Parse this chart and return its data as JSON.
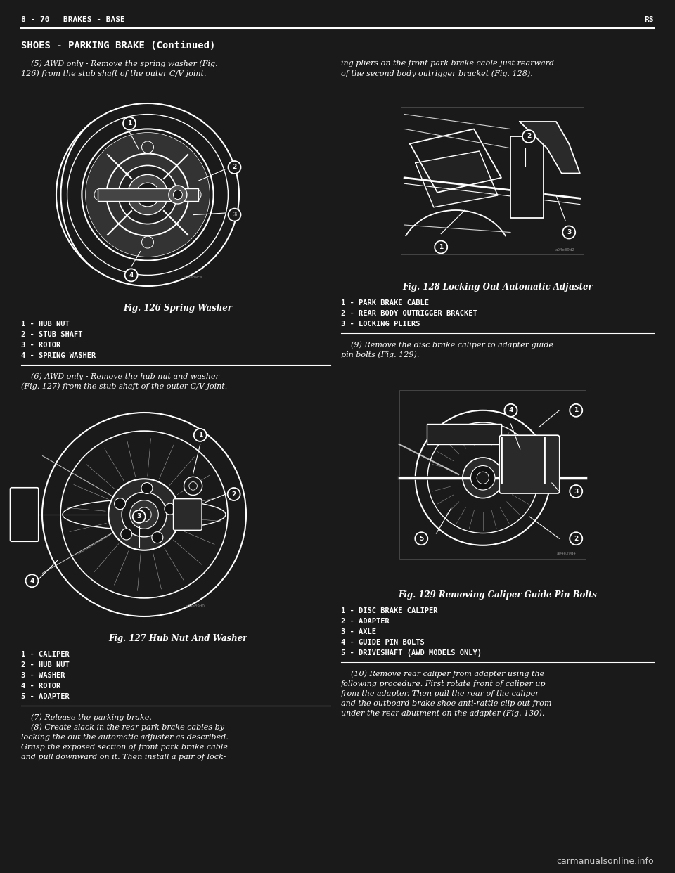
{
  "bg_color": "#1a1a1a",
  "text_color": "#ffffff",
  "line_color": "#ffffff",
  "figsize": [
    9.6,
    12.42
  ],
  "dpi": 100,
  "watermark": "carmanualsonline.info",
  "header_left": "8 - 70",
  "header_mid": "BRAKES - BASE",
  "header_right": "RS",
  "section_title": "SHOES - PARKING BRAKE (Continued)",
  "lc_para1": "    (5) AWD only - Remove the spring washer (Fig.\n126) from the stub shaft of the outer C/V joint.",
  "fig126_caption": "Fig. 126 Spring Washer",
  "fig126_labels": [
    "1 - HUB NUT",
    "2 - STUB SHAFT",
    "3 - ROTOR",
    "4 - SPRING WASHER"
  ],
  "lc_para2": "    (6) AWD only - Remove the hub nut and washer\n(Fig. 127) from the stub shaft of the outer C/V joint.",
  "fig127_caption": "Fig. 127 Hub Nut And Washer",
  "fig127_labels": [
    "1 - CALIPER",
    "2 - HUB NUT",
    "3 - WASHER",
    "4 - ROTOR",
    "5 - ADAPTER"
  ],
  "lc_para3": "    (7) Release the parking brake.\n    (8) Create slack in the rear park brake cables by\nlocking the out the automatic adjuster as described.\nGrasp the exposed section of front park brake cable\nand pull downward on it. Then install a pair of lock-",
  "rc_para1": "ing pliers on the front park brake cable just rearward\nof the second body outrigger bracket (Fig. 128).",
  "fig128_caption": "Fig. 128 Locking Out Automatic Adjuster",
  "fig128_labels": [
    "1 - PARK BRAKE CABLE",
    "2 - REAR BODY OUTRIGGER BRACKET",
    "3 - LOCKING PLIERS"
  ],
  "rc_para2": "    (9) Remove the disc brake caliper to adapter guide\npin bolts (Fig. 129).",
  "fig129_caption": "Fig. 129 Removing Caliper Guide Pin Bolts",
  "fig129_labels": [
    "1 - DISC BRAKE CALIPER",
    "2 - ADAPTER",
    "3 - AXLE",
    "4 - GUIDE PIN BOLTS",
    "5 - DRIVESHAFT (AWD MODELS ONLY)"
  ],
  "rc_para3": "    (10) Remove rear caliper from adapter using the\nfollowing procedure. First rotate front of caliper up\nfrom the adapter. Then pull the rear of the caliper\nand the outboard brake shoe anti-rattle clip out from\nunder the rear abutment on the adapter (Fig. 130)."
}
